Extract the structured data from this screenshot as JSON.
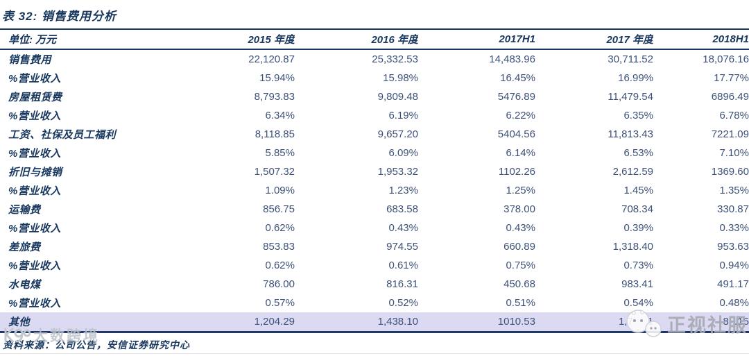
{
  "title": "表 32: 销售费用分析",
  "table": {
    "unit_header": "单位: 万元",
    "columns": [
      "2015 年度",
      "2016 年度",
      "2017H1",
      "2017 年度",
      "2018H1"
    ],
    "rows": [
      {
        "label": "销售费用",
        "values": [
          "22,120.87",
          "25,332.53",
          "14,483.96",
          "30,711.52",
          "18,076.16"
        ],
        "highlight": false
      },
      {
        "label": "%营业收入",
        "values": [
          "15.94%",
          "15.98%",
          "16.45%",
          "16.99%",
          "17.77%"
        ],
        "highlight": false
      },
      {
        "label": "房屋租赁费",
        "values": [
          "8,793.83",
          "9,809.48",
          "5476.89",
          "11,479.54",
          "6896.49"
        ],
        "highlight": false
      },
      {
        "label": "%营业收入",
        "values": [
          "6.34%",
          "6.19%",
          "6.22%",
          "6.35%",
          "6.78%"
        ],
        "highlight": false
      },
      {
        "label": "工资、社保及员工福利",
        "values": [
          "8,118.85",
          "9,657.20",
          "5404.56",
          "11,813.43",
          "7221.09"
        ],
        "highlight": false
      },
      {
        "label": "%营业收入",
        "values": [
          "5.85%",
          "6.09%",
          "6.14%",
          "6.53%",
          "7.10%"
        ],
        "highlight": false
      },
      {
        "label": "折旧与摊销",
        "values": [
          "1,507.32",
          "1,953.32",
          "1102.26",
          "2,612.59",
          "1369.60"
        ],
        "highlight": false
      },
      {
        "label": "%营业收入",
        "values": [
          "1.09%",
          "1.23%",
          "1.25%",
          "1.45%",
          "1.35%"
        ],
        "highlight": false
      },
      {
        "label": "运输费",
        "values": [
          "856.75",
          "683.58",
          "378.00",
          "708.34",
          "330.87"
        ],
        "highlight": false
      },
      {
        "label": "%营业收入",
        "values": [
          "0.62%",
          "0.43%",
          "0.43%",
          "0.39%",
          "0.33%"
        ],
        "highlight": false
      },
      {
        "label": "差旅费",
        "values": [
          "853.83",
          "974.55",
          "660.89",
          "1,318.40",
          "953.63"
        ],
        "highlight": false
      },
      {
        "label": "%营业收入",
        "values": [
          "0.62%",
          "0.61%",
          "0.75%",
          "0.73%",
          "0.94%"
        ],
        "highlight": false
      },
      {
        "label": "水电煤",
        "values": [
          "786.00",
          "816.31",
          "450.68",
          "983.41",
          "491.17"
        ],
        "highlight": false
      },
      {
        "label": "%营业收入",
        "values": [
          "0.57%",
          "0.52%",
          "0.51%",
          "0.54%",
          "0.48%"
        ],
        "highlight": false
      },
      {
        "label": "其他",
        "values": [
          "1,204.29",
          "1,438.10",
          "1010.53",
          "1,7     1",
          "8  .15"
        ],
        "highlight": true
      }
    ]
  },
  "watermarks": {
    "right_text": "正视社服",
    "left_text": "大数跨境"
  },
  "source": "资料来源：公司公告，安信证券研究中心",
  "colors": {
    "navy": "#17375E",
    "value_blue": "#3D5178",
    "highlight_bg": "#DBDAF2",
    "watermark_grey": "#A6AAB3"
  }
}
